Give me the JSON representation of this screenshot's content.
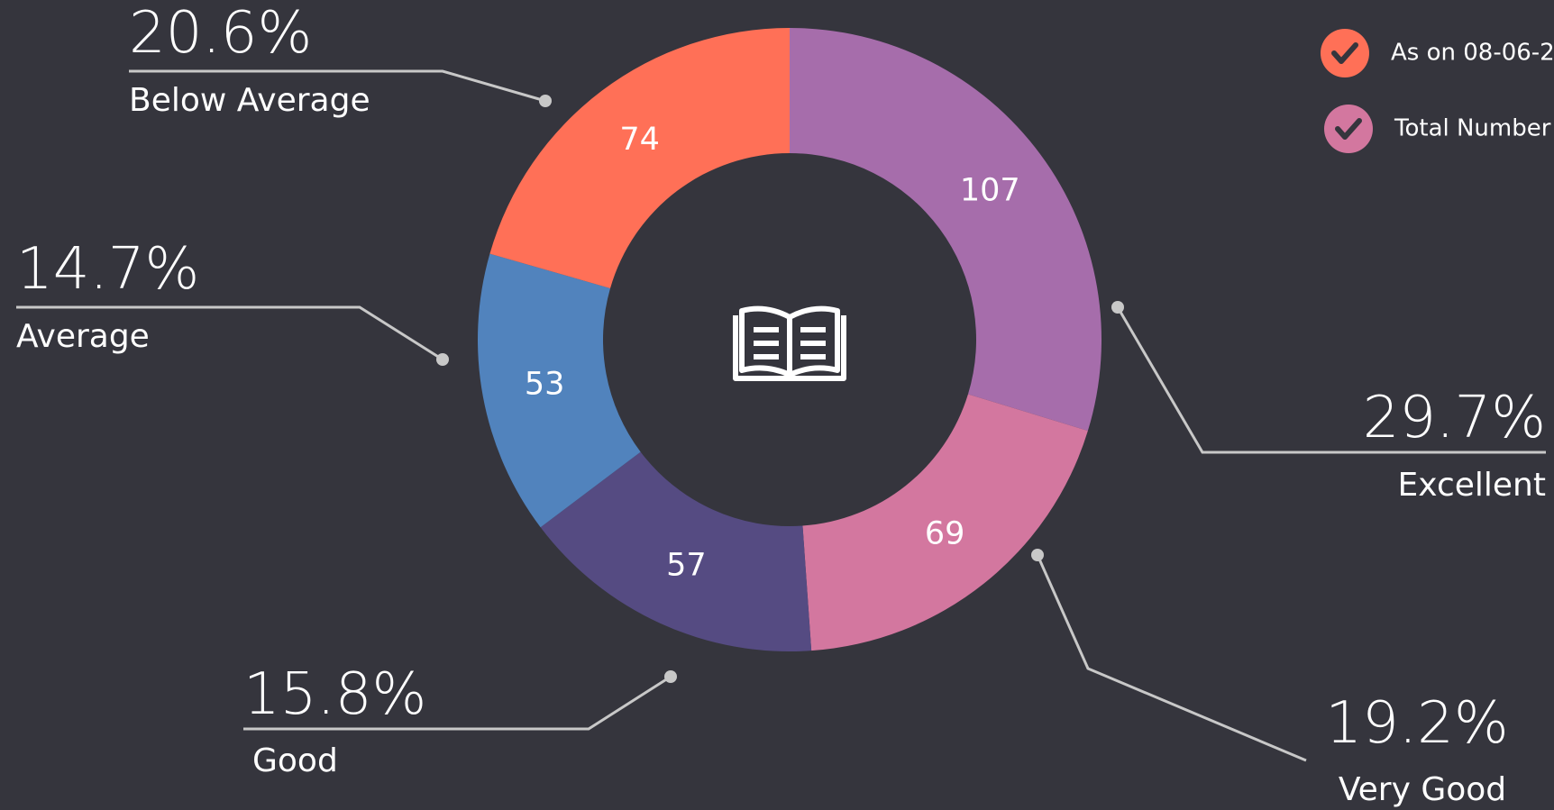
{
  "chart_data": {
    "type": "donut",
    "categories": [
      "Excellent",
      "Very Good",
      "Good",
      "Average",
      "Below Average"
    ],
    "values": [
      107,
      69,
      57,
      53,
      74
    ],
    "percent_labels": [
      "29.7%",
      "19.2%",
      "15.8%",
      "14.7%",
      "20.6%"
    ],
    "colors": [
      "#a66dab",
      "#d3779f",
      "#554b82",
      "#5183bd",
      "#ff7057"
    ],
    "legend": [
      {
        "label": "As on 08-06-2",
        "color": "#ff7057"
      },
      {
        "label": "Total Number",
        "color": "#d3779f"
      }
    ]
  }
}
